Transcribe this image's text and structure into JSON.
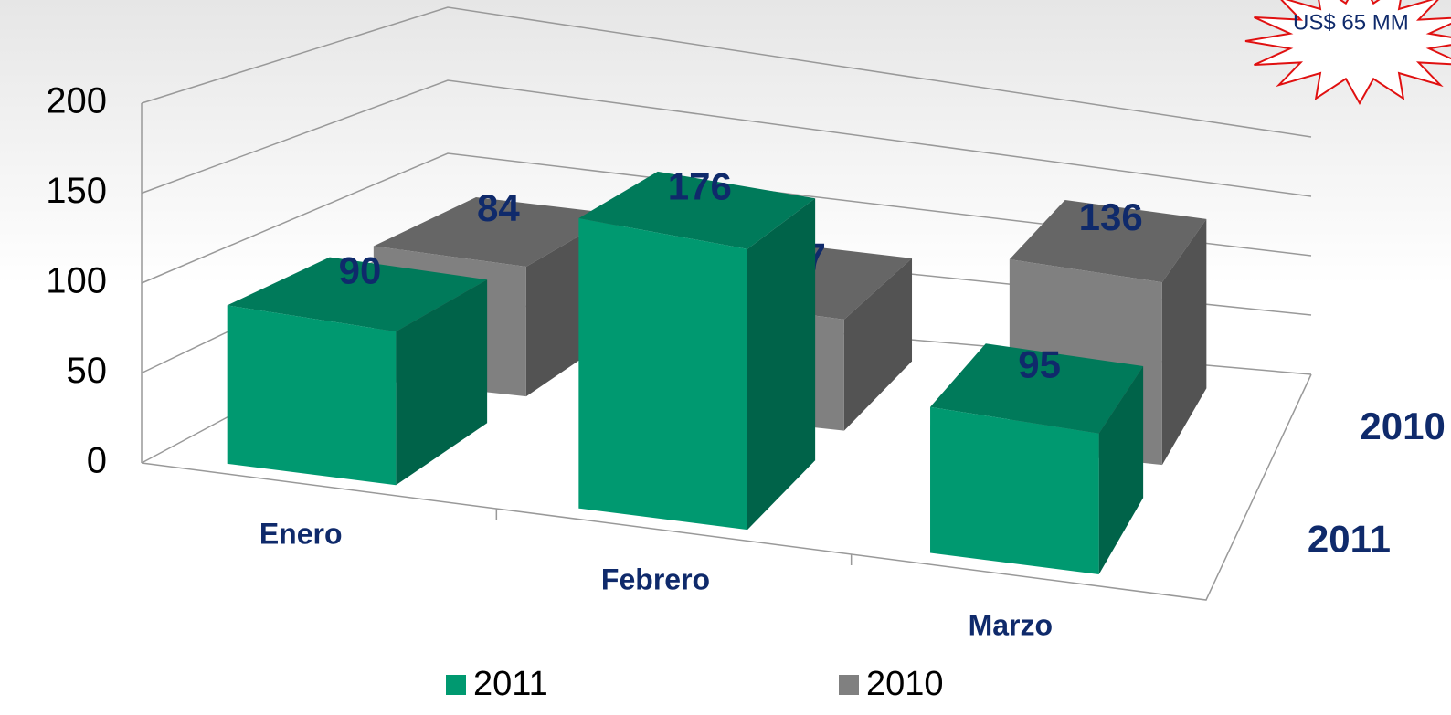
{
  "chart_data": {
    "type": "bar3d",
    "categories": [
      "Enero",
      "Febrero",
      "Marzo"
    ],
    "series": [
      {
        "name": "2011",
        "color": "#009970",
        "values": [
          90,
          176,
          95
        ]
      },
      {
        "name": "2010",
        "color": "#808080",
        "values": [
          84,
          77,
          136
        ]
      }
    ],
    "ylim": [
      0,
      200
    ],
    "yticks": [
      0,
      50,
      100,
      150,
      200
    ],
    "grid": true,
    "legend": "bottom",
    "annotation": "US$ 65 MM"
  }
}
